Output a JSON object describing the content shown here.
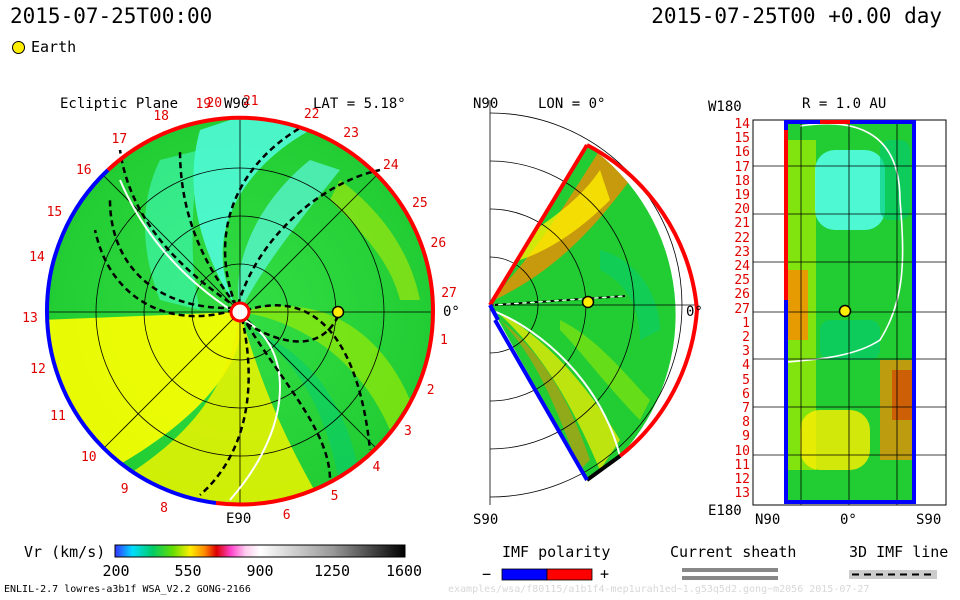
{
  "header": {
    "timestamp": "2015-07-25T00:00",
    "run_time": "2015-07-25T00 +0.00 day",
    "legend_earth": "Earth"
  },
  "ecliptic": {
    "title": "Ecliptic Plane",
    "top_label": "W90",
    "bottom_label": "E90",
    "right_label": "0°",
    "lat_label": "LAT = 5.18°",
    "carrington": [
      {
        "n": "20"
      },
      {
        "n": "21"
      },
      {
        "n": "22"
      },
      {
        "n": "23"
      },
      {
        "n": "24"
      },
      {
        "n": "25"
      },
      {
        "n": "26"
      },
      {
        "n": "27"
      },
      {
        "n": "1"
      },
      {
        "n": "2"
      },
      {
        "n": "3"
      },
      {
        "n": "4"
      },
      {
        "n": "5"
      },
      {
        "n": "6"
      },
      {
        "n": "8"
      },
      {
        "n": "9"
      },
      {
        "n": "10"
      },
      {
        "n": "11"
      },
      {
        "n": "12"
      },
      {
        "n": "13"
      },
      {
        "n": "14"
      },
      {
        "n": "15"
      },
      {
        "n": "16"
      },
      {
        "n": "17"
      },
      {
        "n": "18"
      },
      {
        "n": "19"
      }
    ]
  },
  "meridional": {
    "top_label": "N90",
    "bottom_label": "S90",
    "lon_label": "LON = 0°",
    "right_label": "0°"
  },
  "shell": {
    "top_left_label": "W180",
    "bottom_left_label": "E180",
    "r_label": "R = 1.0 AU",
    "bottom_labels": [
      "N90",
      "0°",
      "S90"
    ],
    "rows": [
      "14",
      "15",
      "16",
      "17",
      "18",
      "19",
      "20",
      "21",
      "22",
      "23",
      "24",
      "25",
      "26",
      "27",
      "1",
      "2",
      "3",
      "4",
      "5",
      "6",
      "7",
      "8",
      "9",
      "10",
      "11",
      "12",
      "13"
    ]
  },
  "colorbar": {
    "title": "Vr (km/s)",
    "ticks": [
      "200",
      "550",
      "900",
      "1250",
      "1600"
    ],
    "min": 200,
    "max": 1600
  },
  "imf": {
    "title": "IMF polarity",
    "minus": "−",
    "plus": "+",
    "colors": {
      "negative": "#0000ff",
      "positive": "#ff0000"
    }
  },
  "sheath": {
    "title": "Current sheath"
  },
  "imf3d": {
    "title": "3D IMF line"
  },
  "footer": {
    "model": "ENLIL-2.7 lowres-a3b1f WSA_V2.2 GONG-2166",
    "path": "examples/wsa/f80115/a1b1f4-mep1urah1ed~1.g53q5d2.gong~m2056  2015-07-27"
  },
  "chart_data": {
    "type": "heatmap",
    "variable": "Vr (km/s)",
    "color_range": [
      200,
      1600
    ],
    "earth": {
      "lat": 5.18,
      "lon": 0,
      "r_au": 1.0
    }
  }
}
